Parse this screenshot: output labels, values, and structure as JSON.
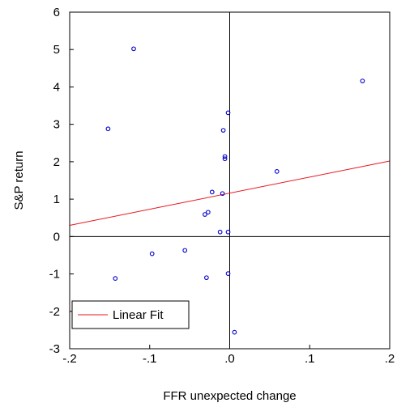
{
  "chart_data": {
    "type": "scatter",
    "title": "",
    "xlabel": "FFR unexpected change",
    "ylabel": "S&P return",
    "xlim": [
      -0.2,
      0.2
    ],
    "ylim": [
      -3,
      6
    ],
    "xticks": [
      {
        "value": -0.2,
        "label": "-.2"
      },
      {
        "value": -0.1,
        "label": "-.1"
      },
      {
        "value": 0.0,
        "label": ".0"
      },
      {
        "value": 0.1,
        "label": ".1"
      },
      {
        "value": 0.2,
        "label": ".2"
      }
    ],
    "yticks": [
      {
        "value": -3,
        "label": "-3"
      },
      {
        "value": -2,
        "label": "-2"
      },
      {
        "value": -1,
        "label": "-1"
      },
      {
        "value": 0,
        "label": "0"
      },
      {
        "value": 1,
        "label": "1"
      },
      {
        "value": 2,
        "label": "2"
      },
      {
        "value": 3,
        "label": "3"
      },
      {
        "value": 4,
        "label": "4"
      },
      {
        "value": 5,
        "label": "5"
      },
      {
        "value": 6,
        "label": "6"
      }
    ],
    "points": [
      {
        "x": -0.12,
        "y": 5.02
      },
      {
        "x": -0.152,
        "y": 2.88
      },
      {
        "x": -0.143,
        "y": -1.12
      },
      {
        "x": -0.097,
        "y": -0.46
      },
      {
        "x": -0.056,
        "y": -0.37
      },
      {
        "x": -0.031,
        "y": 0.59
      },
      {
        "x": -0.027,
        "y": 0.65
      },
      {
        "x": -0.022,
        "y": 1.19
      },
      {
        "x": -0.029,
        "y": -1.1
      },
      {
        "x": -0.012,
        "y": 0.12
      },
      {
        "x": -0.009,
        "y": 1.15
      },
      {
        "x": -0.008,
        "y": 2.84
      },
      {
        "x": -0.006,
        "y": 2.14
      },
      {
        "x": -0.006,
        "y": 2.08
      },
      {
        "x": -0.002,
        "y": 3.31
      },
      {
        "x": -0.002,
        "y": 0.12
      },
      {
        "x": -0.002,
        "y": -0.99
      },
      {
        "x": 0.006,
        "y": -2.56
      },
      {
        "x": 0.059,
        "y": 1.74
      },
      {
        "x": 0.166,
        "y": 4.16
      }
    ],
    "fit_line": {
      "name": "Linear Fit",
      "x": [
        -0.2,
        0.2
      ],
      "y": [
        0.3,
        2.02
      ]
    },
    "reference_lines": {
      "x": 0,
      "y": 0
    },
    "grid": false,
    "legend": {
      "position": "bottom-left",
      "entries": [
        "Linear Fit"
      ]
    },
    "colors": {
      "points": "#0000cc",
      "fit_line": "#e8191e",
      "axes": "#000000"
    }
  }
}
